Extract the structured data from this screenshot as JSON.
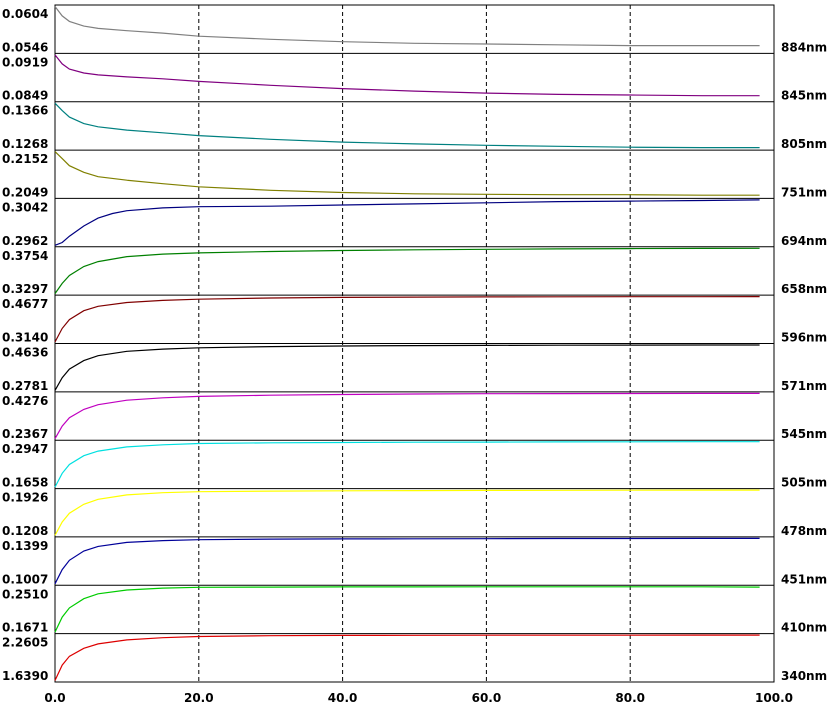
{
  "chart_data": {
    "type": "line",
    "layout": "stacked-panels",
    "xlim": [
      0,
      100
    ],
    "x_tick_labels": [
      "0.0",
      "20.0",
      "40.0",
      "60.0",
      "80.0",
      "100.0"
    ],
    "x_tick_values": [
      0,
      20,
      40,
      60,
      80,
      100
    ],
    "vertical_gridlines": [
      20,
      40,
      60,
      80
    ],
    "vertical_grid_style": "dashed",
    "title": "",
    "xlabel": "",
    "ylabel": "",
    "panels": [
      {
        "label": "884nm",
        "color": "#808080",
        "ymax_label": "0.0604",
        "ymin_label": "0.0546",
        "ylim": [
          0.0546,
          0.0604
        ],
        "x": [
          0,
          1,
          2,
          4,
          6,
          10,
          15,
          20,
          30,
          40,
          50,
          60,
          70,
          80,
          90,
          98
        ],
        "y": [
          0.0604,
          0.0592,
          0.0585,
          0.0579,
          0.0576,
          0.0573,
          0.057,
          0.0566,
          0.0562,
          0.0559,
          0.0557,
          0.0556,
          0.0555,
          0.0554,
          0.0554,
          0.0554
        ]
      },
      {
        "label": "845nm",
        "color": "#800080",
        "ymax_label": "0.0919",
        "ymin_label": "0.0849",
        "ylim": [
          0.0849,
          0.0919
        ],
        "x": [
          0,
          1,
          2,
          4,
          6,
          10,
          15,
          20,
          30,
          40,
          50,
          60,
          70,
          80,
          90,
          98
        ],
        "y": [
          0.0919,
          0.0905,
          0.0897,
          0.0891,
          0.0888,
          0.0885,
          0.0882,
          0.0878,
          0.0872,
          0.0867,
          0.0863,
          0.086,
          0.0858,
          0.0857,
          0.0856,
          0.0856
        ]
      },
      {
        "label": "805nm",
        "color": "#008080",
        "ymax_label": "0.1366",
        "ymin_label": "0.1268",
        "ylim": [
          0.1268,
          0.1366
        ],
        "x": [
          0,
          1,
          2,
          4,
          6,
          10,
          15,
          20,
          30,
          40,
          50,
          60,
          70,
          80,
          90,
          98
        ],
        "y": [
          0.1366,
          0.135,
          0.1336,
          0.1322,
          0.1315,
          0.1308,
          0.1302,
          0.1296,
          0.1288,
          0.1282,
          0.1278,
          0.1275,
          0.1273,
          0.1271,
          0.127,
          0.127
        ]
      },
      {
        "label": "751nm",
        "color": "#808000",
        "ymax_label": "0.2152",
        "ymin_label": "0.2049",
        "ylim": [
          0.2049,
          0.2152
        ],
        "x": [
          0,
          1,
          2,
          4,
          6,
          10,
          15,
          20,
          30,
          40,
          50,
          60,
          70,
          80,
          90,
          98
        ],
        "y": [
          0.2152,
          0.2136,
          0.212,
          0.2105,
          0.2095,
          0.2087,
          0.2079,
          0.2072,
          0.2064,
          0.2059,
          0.2056,
          0.2055,
          0.2054,
          0.2054,
          0.2053,
          0.2053
        ]
      },
      {
        "label": "694nm",
        "color": "#000080",
        "ymax_label": "0.3042",
        "ymin_label": "0.2962",
        "ylim": [
          0.2962,
          0.3042
        ],
        "x": [
          0,
          1,
          2,
          4,
          6,
          8,
          10,
          15,
          20,
          30,
          40,
          50,
          60,
          70,
          80,
          90,
          98
        ],
        "y": [
          0.2962,
          0.2967,
          0.2978,
          0.2996,
          0.301,
          0.3018,
          0.3023,
          0.3028,
          0.303,
          0.3031,
          0.3033,
          0.3035,
          0.3037,
          0.3039,
          0.304,
          0.3041,
          0.3042
        ]
      },
      {
        "label": "658nm",
        "color": "#008000",
        "ymax_label": "0.3754",
        "ymin_label": "0.3297",
        "ylim": [
          0.3297,
          0.3754
        ],
        "x": [
          0,
          1,
          2,
          4,
          6,
          10,
          15,
          20,
          30,
          40,
          50,
          60,
          70,
          80,
          90,
          98
        ],
        "y": [
          0.3297,
          0.34,
          0.348,
          0.357,
          0.362,
          0.367,
          0.3695,
          0.3708,
          0.3722,
          0.3732,
          0.3739,
          0.3744,
          0.3748,
          0.3751,
          0.3753,
          0.3754
        ]
      },
      {
        "label": "596nm",
        "color": "#800000",
        "ymax_label": "0.4677",
        "ymin_label": "0.3140",
        "ylim": [
          0.314,
          0.4677
        ],
        "x": [
          0,
          1,
          2,
          4,
          6,
          10,
          15,
          20,
          30,
          40,
          50,
          60,
          70,
          80,
          90,
          98
        ],
        "y": [
          0.314,
          0.36,
          0.39,
          0.42,
          0.435,
          0.448,
          0.455,
          0.459,
          0.463,
          0.465,
          0.4662,
          0.4668,
          0.4672,
          0.4675,
          0.4676,
          0.4677
        ]
      },
      {
        "label": "571nm",
        "color": "#000000",
        "ymax_label": "0.4636",
        "ymin_label": "0.2781",
        "ylim": [
          0.2781,
          0.4636
        ],
        "x": [
          0,
          1,
          2,
          4,
          6,
          10,
          15,
          20,
          30,
          40,
          50,
          60,
          70,
          80,
          90,
          98
        ],
        "y": [
          0.2781,
          0.33,
          0.365,
          0.4,
          0.42,
          0.438,
          0.447,
          0.452,
          0.457,
          0.4595,
          0.461,
          0.462,
          0.4627,
          0.4632,
          0.4634,
          0.4636
        ]
      },
      {
        "label": "545nm",
        "color": "#c000c0",
        "ymax_label": "0.4276",
        "ymin_label": "0.2367",
        "ylim": [
          0.2367,
          0.4276
        ],
        "x": [
          0,
          1,
          2,
          4,
          6,
          10,
          15,
          20,
          30,
          40,
          50,
          60,
          70,
          80,
          90,
          98
        ],
        "y": [
          0.2367,
          0.29,
          0.325,
          0.36,
          0.38,
          0.399,
          0.409,
          0.415,
          0.42,
          0.423,
          0.4248,
          0.426,
          0.4267,
          0.4272,
          0.4275,
          0.4276
        ]
      },
      {
        "label": "505nm",
        "color": "#00e0e0",
        "ymax_label": "0.2947",
        "ymin_label": "0.1658",
        "ylim": [
          0.1658,
          0.2947
        ],
        "x": [
          0,
          1,
          2,
          4,
          6,
          10,
          15,
          20,
          30,
          40,
          50,
          60,
          70,
          80,
          90,
          98
        ],
        "y": [
          0.1658,
          0.205,
          0.23,
          0.255,
          0.268,
          0.28,
          0.286,
          0.2895,
          0.2915,
          0.2925,
          0.2932,
          0.2937,
          0.2941,
          0.2944,
          0.2946,
          0.2947
        ]
      },
      {
        "label": "478nm",
        "color": "#ffff00",
        "ymax_label": "0.1926",
        "ymin_label": "0.1208",
        "ylim": [
          0.1208,
          0.1926
        ],
        "x": [
          0,
          1,
          2,
          4,
          6,
          10,
          15,
          20,
          30,
          40,
          50,
          60,
          70,
          80,
          90,
          98
        ],
        "y": [
          0.1208,
          0.142,
          0.156,
          0.17,
          0.178,
          0.185,
          0.1885,
          0.19,
          0.191,
          0.1915,
          0.1918,
          0.1921,
          0.1923,
          0.1924,
          0.1925,
          0.1926
        ]
      },
      {
        "label": "451nm",
        "color": "#000099",
        "ymax_label": "0.1399",
        "ymin_label": "0.1007",
        "ylim": [
          0.1007,
          0.1399
        ],
        "x": [
          0,
          1,
          2,
          4,
          6,
          10,
          15,
          20,
          30,
          40,
          50,
          60,
          70,
          80,
          90,
          98
        ],
        "y": [
          0.1007,
          0.113,
          0.121,
          0.129,
          0.133,
          0.1365,
          0.138,
          0.1388,
          0.1393,
          0.1395,
          0.1396,
          0.1397,
          0.1398,
          0.1398,
          0.1399,
          0.1399
        ]
      },
      {
        "label": "410nm",
        "color": "#00cc00",
        "ymax_label": "0.2510",
        "ymin_label": "0.1671",
        "ylim": [
          0.1671,
          0.251
        ],
        "x": [
          0,
          1,
          2,
          4,
          6,
          10,
          15,
          20,
          30,
          40,
          50,
          60,
          70,
          80,
          90,
          98
        ],
        "y": [
          0.1671,
          0.195,
          0.212,
          0.229,
          0.238,
          0.245,
          0.2485,
          0.25,
          0.2505,
          0.2507,
          0.2508,
          0.2509,
          0.2509,
          0.251,
          0.251,
          0.2505
        ]
      },
      {
        "label": "340nm",
        "color": "#dd0000",
        "ymax_label": "2.2605",
        "ymin_label": "1.6390",
        "ylim": [
          1.639,
          2.2605
        ],
        "x": [
          0,
          1,
          2,
          4,
          6,
          10,
          15,
          20,
          30,
          40,
          50,
          60,
          70,
          80,
          90,
          98
        ],
        "y": [
          1.639,
          1.85,
          1.97,
          2.08,
          2.14,
          2.195,
          2.225,
          2.242,
          2.253,
          2.257,
          2.259,
          2.2598,
          2.2602,
          2.2604,
          2.2605,
          2.2605
        ]
      }
    ]
  }
}
